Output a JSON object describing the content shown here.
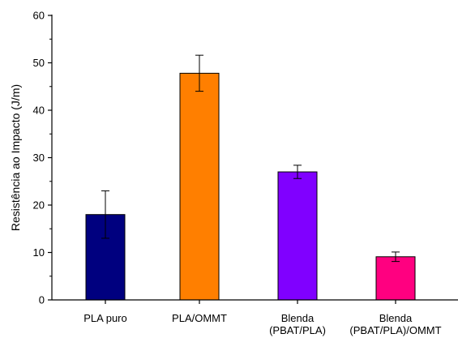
{
  "chart_data": {
    "type": "bar",
    "title": "",
    "xlabel": "",
    "ylabel": "Resistência ao Impacto (J/m)",
    "ylim": [
      0,
      60
    ],
    "yticks": [
      0,
      10,
      20,
      30,
      40,
      50,
      60
    ],
    "grid": false,
    "legend": "none",
    "categories": [
      [
        "PLA puro"
      ],
      [
        "PLA/OMMT"
      ],
      [
        "Blenda",
        "(PBAT/PLA)"
      ],
      [
        "Blenda",
        "(PBAT/PLA)/OMMT"
      ]
    ],
    "values": [
      18,
      47.8,
      27,
      9.1
    ],
    "error": [
      5,
      3.8,
      1.4,
      1
    ],
    "colors": [
      "#00007f",
      "#ff7f00",
      "#8000ff",
      "#ff0080"
    ]
  }
}
